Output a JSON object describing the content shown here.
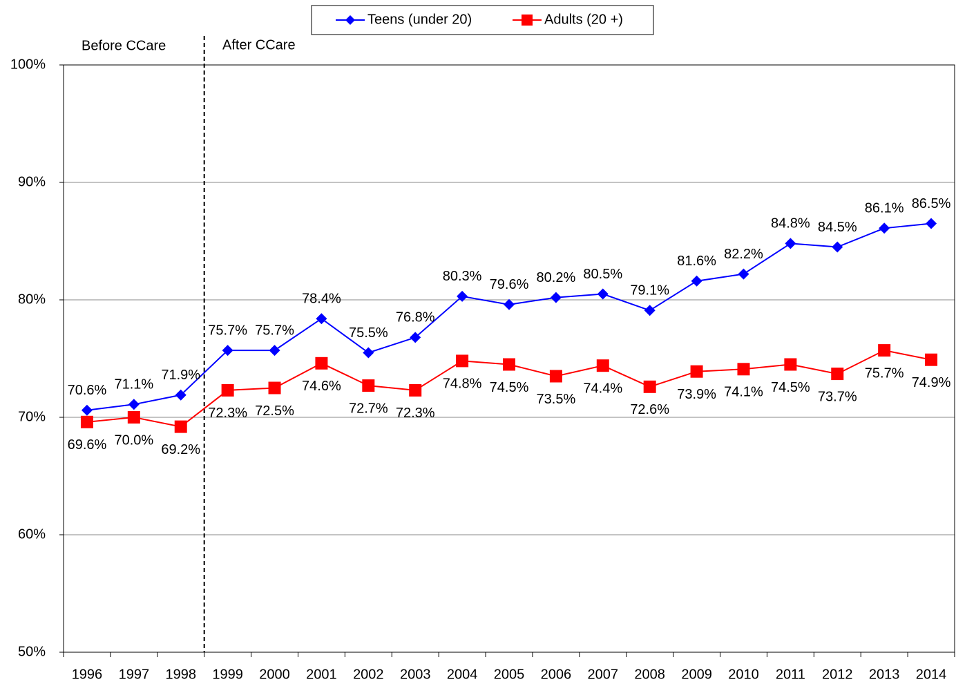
{
  "chart_data": {
    "type": "line",
    "annotations": [
      "Before CCare",
      "After CCare"
    ],
    "categories": [
      "1996",
      "1997",
      "1998",
      "1999",
      "2000",
      "2001",
      "2002",
      "2003",
      "2004",
      "2005",
      "2006",
      "2007",
      "2008",
      "2009",
      "2010",
      "2011",
      "2012",
      "2013",
      "2014"
    ],
    "series": [
      {
        "name": "Teens (under 20)",
        "color": "#0000ff",
        "marker": "diamond",
        "values": [
          70.6,
          71.1,
          71.9,
          75.7,
          75.7,
          78.4,
          75.5,
          76.8,
          80.3,
          79.6,
          80.2,
          80.5,
          79.1,
          81.6,
          82.2,
          84.8,
          84.5,
          86.1,
          86.5
        ],
        "value_labels": [
          "70.6%",
          "71.1%",
          "71.9%",
          "75.7%",
          "75.7%",
          "78.4%",
          "75.5%",
          "76.8%",
          "80.3%",
          "79.6%",
          "80.2%",
          "80.5%",
          "79.1%",
          "81.6%",
          "82.2%",
          "84.8%",
          "84.5%",
          "86.1%",
          "86.5%"
        ]
      },
      {
        "name": "Adults (20 +)",
        "color": "#ff0000",
        "marker": "square",
        "values": [
          69.6,
          70.0,
          69.2,
          72.3,
          72.5,
          74.6,
          72.7,
          72.3,
          74.8,
          74.5,
          73.5,
          74.4,
          72.6,
          73.9,
          74.1,
          74.5,
          73.7,
          75.7,
          74.9
        ],
        "value_labels": [
          "69.6%",
          "70.0%",
          "69.2%",
          "72.3%",
          "72.5%",
          "74.6%",
          "72.7%",
          "72.3%",
          "74.8%",
          "74.5%",
          "73.5%",
          "74.4%",
          "72.6%",
          "73.9%",
          "74.1%",
          "74.5%",
          "73.7%",
          "75.7%",
          "74.9%"
        ]
      }
    ],
    "ylim": [
      50,
      100
    ],
    "yticks": [
      {
        "value": 50,
        "label": "50%"
      },
      {
        "value": 60,
        "label": "60%"
      },
      {
        "value": 70,
        "label": "70%"
      },
      {
        "value": 80,
        "label": "80%"
      },
      {
        "value": 90,
        "label": "90%"
      },
      {
        "value": 100,
        "label": "100%"
      }
    ],
    "grid": true
  }
}
